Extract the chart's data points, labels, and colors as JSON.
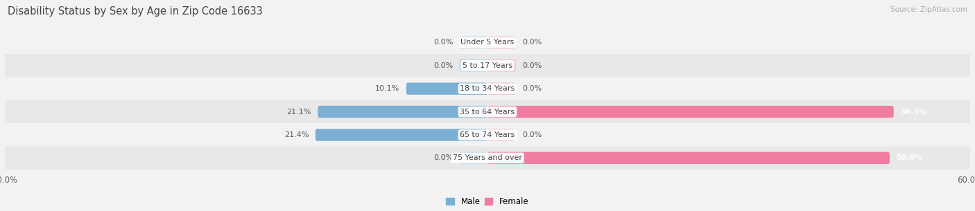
{
  "title": "Disability Status by Sex by Age in Zip Code 16633",
  "source": "Source: ZipAtlas.com",
  "categories": [
    "Under 5 Years",
    "5 to 17 Years",
    "18 to 34 Years",
    "35 to 64 Years",
    "65 to 74 Years",
    "75 Years and over"
  ],
  "male_values": [
    0.0,
    0.0,
    10.1,
    21.1,
    21.4,
    0.0
  ],
  "female_values": [
    0.0,
    0.0,
    0.0,
    50.5,
    0.0,
    50.0
  ],
  "male_color": "#7bafd4",
  "female_color": "#f07ca0",
  "male_color_light": "#b8d4e8",
  "female_color_light": "#f7b8cc",
  "male_label": "Male",
  "female_label": "Female",
  "xlim": 60.0,
  "bar_height": 0.52,
  "stub_size": 3.5,
  "row_colors": [
    "#f2f2f2",
    "#e8e8e8"
  ],
  "title_fontsize": 10.5,
  "label_fontsize": 8.0,
  "value_fontsize": 8.0,
  "tick_fontsize": 8.5,
  "source_fontsize": 7.5
}
